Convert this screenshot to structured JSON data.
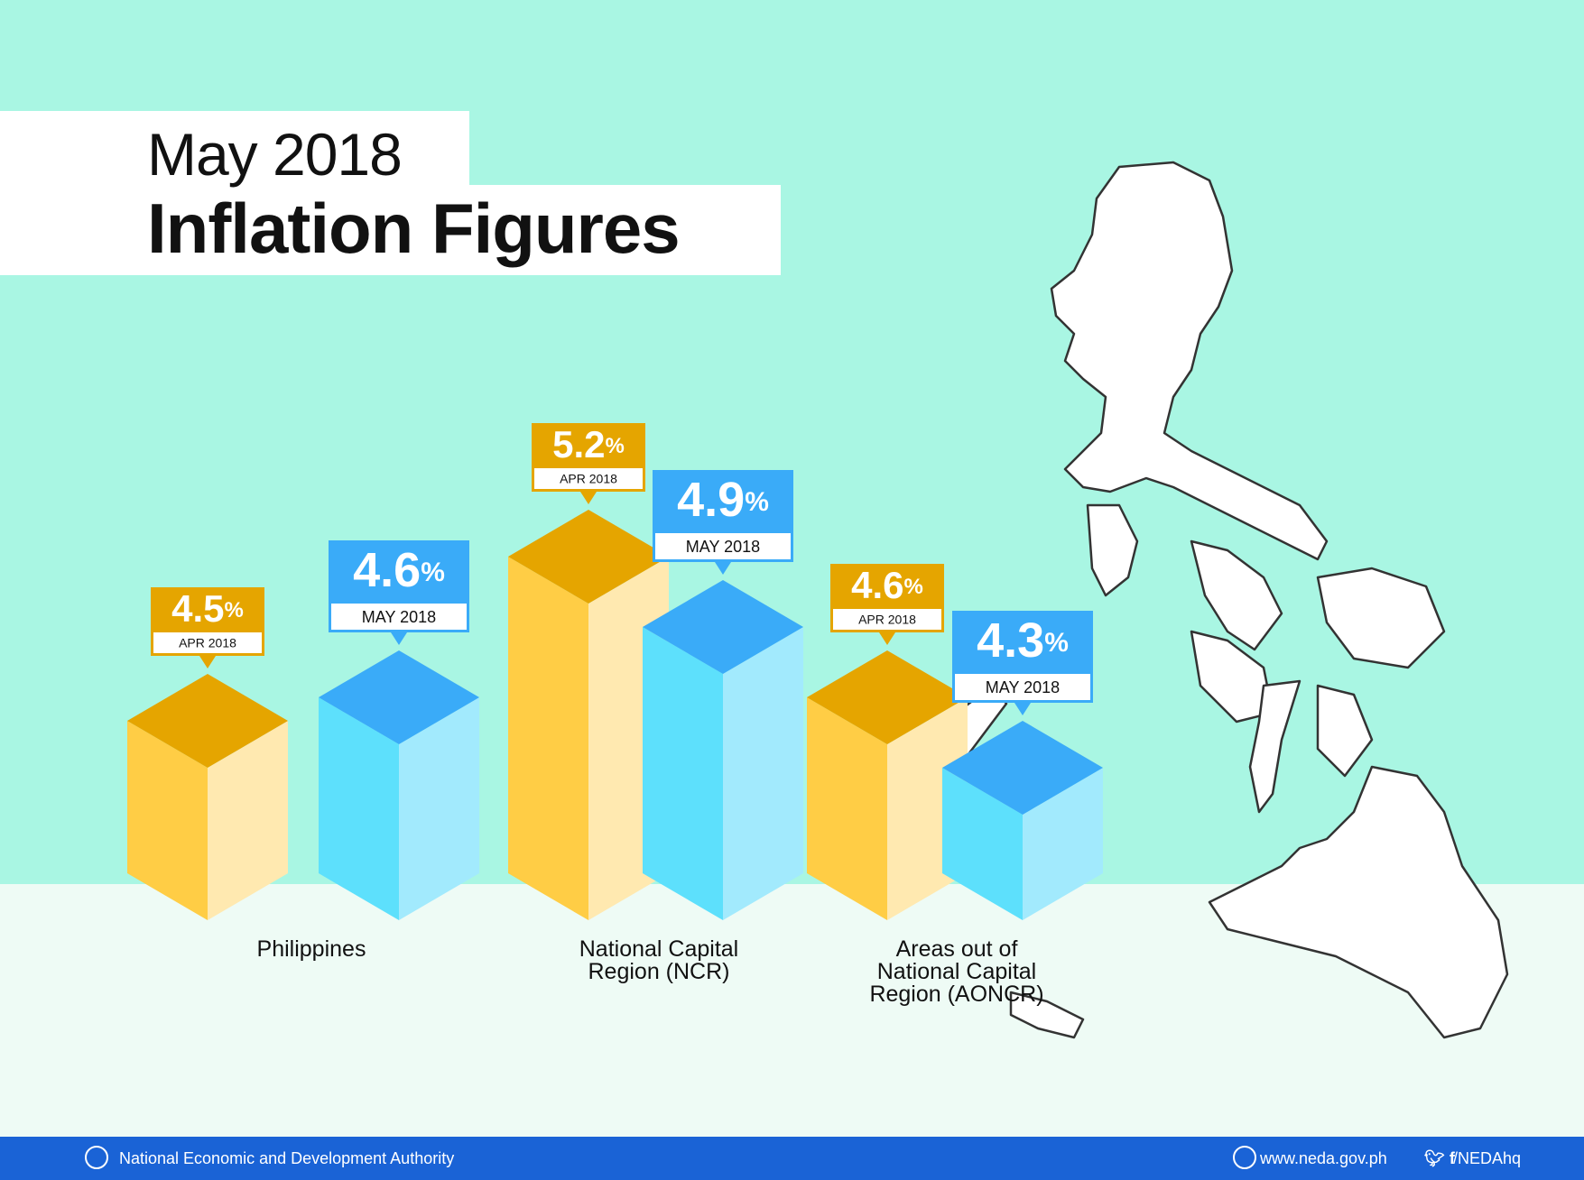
{
  "header": {
    "subtitle": "May 2018",
    "title": "Inflation Figures"
  },
  "chart_data": {
    "type": "bar",
    "categories": [
      "Philippines",
      "National Capital Region (NCR)",
      "Areas out of National Capital Region (AONCR)"
    ],
    "series": [
      {
        "name": "APR 2018",
        "color": "#e5a500",
        "values": [
          4.5,
          5.2,
          4.6
        ],
        "value_labels": [
          "4.5%",
          "5.2%",
          "4.6%"
        ]
      },
      {
        "name": "MAY 2018",
        "color": "#3aabf8",
        "values": [
          4.6,
          4.9,
          4.3
        ],
        "value_labels": [
          "4.6%",
          "4.9%",
          "4.3%"
        ]
      }
    ]
  },
  "footer": {
    "organization": "National Economic and Development Authority",
    "website": "www.neda.gov.ph",
    "social": "/NEDAhq"
  }
}
